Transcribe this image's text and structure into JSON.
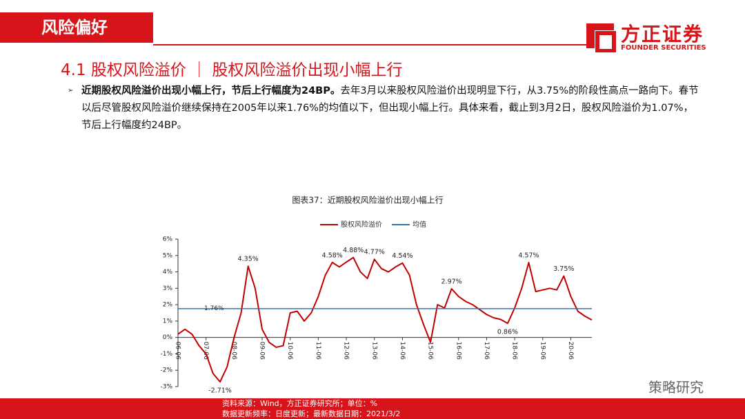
{
  "header": {
    "section": "风险偏好",
    "logo_name": "方正证券",
    "logo_en": "FOUNDER SECURITIES"
  },
  "heading": "4.1 股权风险溢价 ｜ 股权风险溢价出现小幅上行",
  "bullet": {
    "bold": "近期股权风险溢价出现小幅上行，节后上行幅度为24BP。",
    "text": "去年3月以来股权风险溢价出现明显下行，从3.75%的阶段性高点一路向下。春节以后尽管股权风险溢价继续保持在2005年以来1.76%的均值以下，但出现小幅上行。具体来看，截止到3月2日，股权风险溢价为1.07%，节后上行幅度约24BP。"
  },
  "footer": [
    "资料来源：Wind，方正证券研究所；单位：%",
    "数据更新频率：日度更新；最新数据日期：2021/3/2"
  ],
  "watermark": "策略研究",
  "chart_data": {
    "type": "line",
    "title": "图表37：近期股权风险溢价出现小幅上行",
    "categories": [
      "06-06",
      null,
      null,
      null,
      "07-06",
      null,
      null,
      null,
      "08-06",
      null,
      null,
      null,
      "09-06",
      null,
      null,
      null,
      "10-06",
      null,
      null,
      null,
      "11-06",
      null,
      null,
      null,
      "12-06",
      null,
      null,
      null,
      "13-06",
      null,
      null,
      null,
      "14-06",
      null,
      null,
      null,
      "15-06",
      null,
      null,
      null,
      "16-06",
      null,
      null,
      null,
      "17-06",
      null,
      null,
      null,
      "18-06",
      null,
      null,
      null,
      "19-06",
      null,
      null,
      null,
      "20-06",
      null,
      null,
      null
    ],
    "series": [
      {
        "name": "股权风险溢价",
        "color": "#c00000",
        "values": [
          0.2,
          0.5,
          0.2,
          -0.5,
          -1.0,
          -2.2,
          -2.71,
          -1.8,
          0.0,
          1.5,
          4.35,
          3.0,
          0.5,
          -0.3,
          -0.6,
          -0.5,
          1.5,
          1.6,
          1.0,
          1.5,
          2.5,
          3.8,
          4.58,
          4.3,
          4.6,
          4.88,
          4.0,
          3.6,
          4.77,
          4.2,
          4.0,
          4.3,
          4.54,
          3.8,
          2.0,
          0.8,
          -0.3,
          2.0,
          1.8,
          2.97,
          2.5,
          2.2,
          2.0,
          1.7,
          1.4,
          1.2,
          1.1,
          0.86,
          1.8,
          3.0,
          4.57,
          2.8,
          2.9,
          3.0,
          2.9,
          3.75,
          2.5,
          1.6,
          1.3,
          1.07
        ],
        "value_labels": [
          null,
          null,
          null,
          null,
          null,
          null,
          "-2.71%",
          null,
          null,
          null,
          "4.35%",
          null,
          null,
          null,
          null,
          null,
          null,
          null,
          null,
          null,
          null,
          null,
          "4.58%",
          null,
          null,
          "4.88%",
          null,
          null,
          "4.77%",
          null,
          null,
          null,
          "4.54%",
          null,
          null,
          null,
          null,
          null,
          null,
          "2.97%",
          null,
          null,
          null,
          null,
          null,
          null,
          null,
          "0.86%",
          null,
          null,
          "4.57%",
          null,
          null,
          null,
          null,
          "3.75%",
          null,
          null,
          null,
          null
        ]
      },
      {
        "name": "均值",
        "color": "#2e75b6",
        "value": 1.76,
        "value_label": "1.76%"
      }
    ],
    "ylim": [
      -3,
      6
    ],
    "yticks": [
      {
        "value": -3,
        "label": "-3%"
      },
      {
        "value": -2,
        "label": "-2%"
      },
      {
        "value": -1,
        "label": "-1%"
      },
      {
        "value": 0,
        "label": "0%"
      },
      {
        "value": 1,
        "label": "1%"
      },
      {
        "value": 2,
        "label": "2%"
      },
      {
        "value": 3,
        "label": "3%"
      },
      {
        "value": 4,
        "label": "4%"
      },
      {
        "value": 5,
        "label": "5%"
      },
      {
        "value": 6,
        "label": "6%"
      }
    ]
  }
}
